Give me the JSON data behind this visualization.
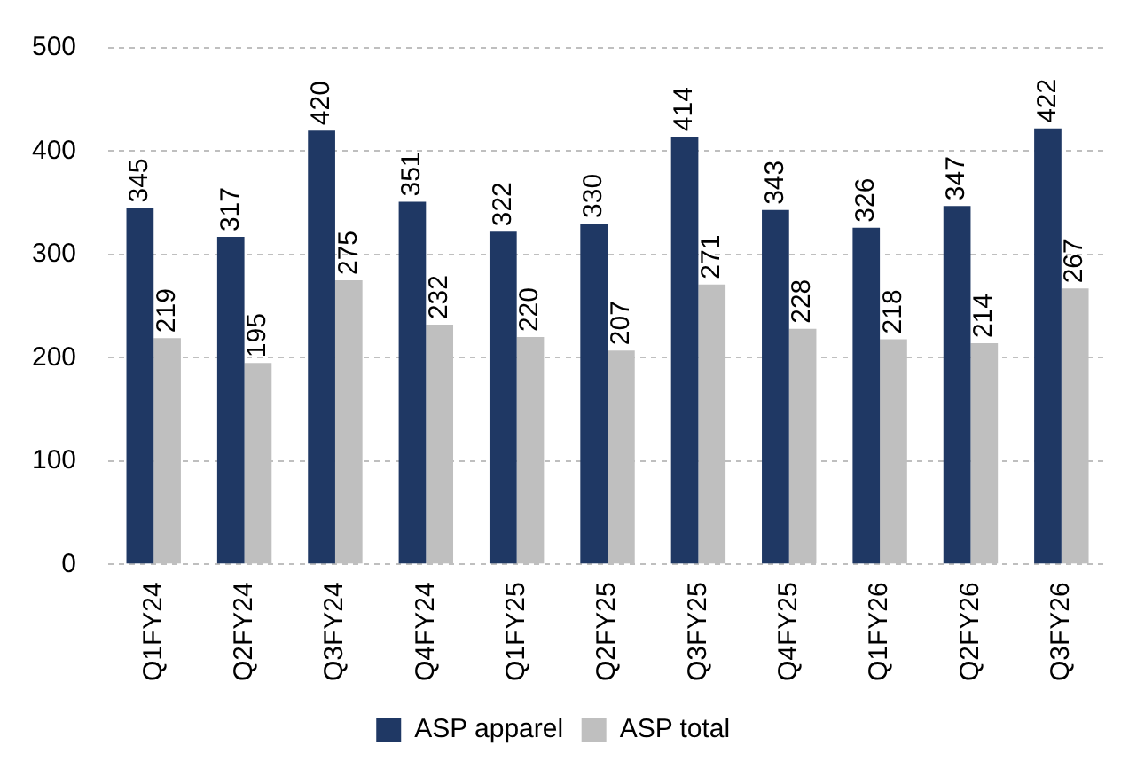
{
  "chart_data": {
    "type": "bar",
    "categories": [
      "Q1FY24",
      "Q2FY24",
      "Q3FY24",
      "Q4FY24",
      "Q1FY25",
      "Q2FY25",
      "Q3FY25",
      "Q4FY25",
      "Q1FY26",
      "Q2FY26",
      "Q3FY26"
    ],
    "series": [
      {
        "name": "ASP apparel",
        "color": "#1f3864",
        "values": [
          345,
          317,
          420,
          351,
          322,
          330,
          414,
          343,
          326,
          347,
          422
        ]
      },
      {
        "name": "ASP total",
        "color": "#bfbfbf",
        "values": [
          219,
          195,
          275,
          232,
          220,
          207,
          271,
          228,
          218,
          214,
          267
        ]
      }
    ],
    "ylim": [
      0,
      500
    ],
    "yticks": [
      0,
      100,
      200,
      300,
      400,
      500
    ],
    "grid": "y",
    "legend": "bottom",
    "data_labels": true
  }
}
